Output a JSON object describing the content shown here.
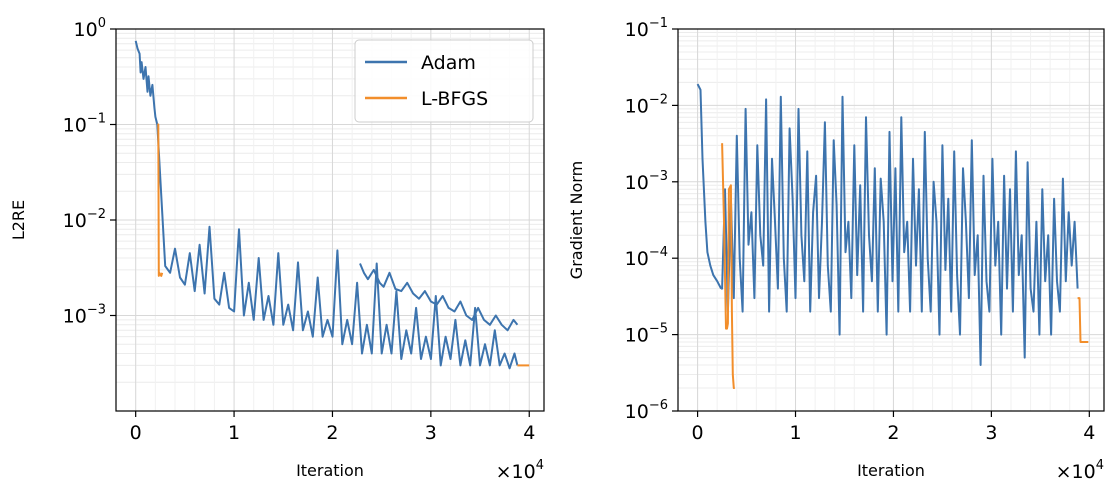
{
  "chart_data": [
    {
      "type": "line",
      "xlabel": "Iteration",
      "ylabel": "L2RE",
      "yscale": "log",
      "xlim": [
        -0.2,
        4.15
      ],
      "ylim": [
        0.0001,
        1.0
      ],
      "x_scale_factor": "×10",
      "x_scale_exponent": "4",
      "x_ticks": [
        0,
        1,
        2,
        3,
        4
      ],
      "x_tick_labels": [
        "0",
        "1",
        "2",
        "3",
        "4"
      ],
      "y_ticks": [
        {
          "value": 1.0,
          "base": "10",
          "exp": "0"
        },
        {
          "value": 0.1,
          "base": "10",
          "exp": "−1"
        },
        {
          "value": 0.01,
          "base": "10",
          "exp": "−2"
        },
        {
          "value": 0.001,
          "base": "10",
          "exp": "−3"
        }
      ],
      "grid": true,
      "legend": "top-right",
      "series": [
        {
          "name": "Adam",
          "color": "#3d74ae",
          "x": [
            0.0,
            0.02,
            0.04,
            0.05,
            0.06,
            0.08,
            0.1,
            0.12,
            0.13,
            0.15,
            0.17,
            0.19,
            0.2,
            0.22
          ],
          "y": [
            0.75,
            0.62,
            0.55,
            0.35,
            0.45,
            0.3,
            0.4,
            0.22,
            0.32,
            0.2,
            0.26,
            0.15,
            0.12,
            0.1
          ],
          "x_tail": [
            2.28,
            2.32,
            2.36,
            2.42,
            2.48,
            2.52,
            2.58,
            2.64,
            2.7,
            2.76,
            2.82,
            2.88,
            2.94,
            3.0,
            3.06,
            3.12,
            3.18,
            3.24,
            3.3,
            3.36,
            3.42,
            3.48,
            3.54,
            3.6,
            3.66,
            3.72,
            3.78,
            3.84,
            3.88
          ],
          "y_tail": [
            0.0035,
            0.0028,
            0.0024,
            0.003,
            0.0022,
            0.002,
            0.0028,
            0.0019,
            0.0018,
            0.0022,
            0.0017,
            0.0015,
            0.0018,
            0.0014,
            0.0013,
            0.0016,
            0.0012,
            0.0011,
            0.0014,
            0.001,
            0.0009,
            0.0012,
            0.0009,
            0.0008,
            0.001,
            0.0008,
            0.0007,
            0.0009,
            0.0008
          ],
          "x_noise": [
            0.3,
            0.35,
            0.4,
            0.45,
            0.5,
            0.55,
            0.6,
            0.65,
            0.7,
            0.75,
            0.8,
            0.85,
            0.9,
            0.95,
            1.0,
            1.05,
            1.1,
            1.15,
            1.2,
            1.25,
            1.3,
            1.35,
            1.4,
            1.45,
            1.5,
            1.55,
            1.6,
            1.65,
            1.7,
            1.75,
            1.8,
            1.85,
            1.9,
            1.95,
            2.0,
            2.05,
            2.1,
            2.15,
            2.2,
            2.25,
            2.3,
            2.35,
            2.4,
            2.45,
            2.5,
            2.55,
            2.6,
            2.65,
            2.7,
            2.75,
            2.8,
            2.85,
            2.9,
            2.95,
            3.0,
            3.05,
            3.1,
            3.15,
            3.2,
            3.25,
            3.3,
            3.35,
            3.4,
            3.45,
            3.5,
            3.55,
            3.6,
            3.65,
            3.7,
            3.75,
            3.8,
            3.85,
            3.88
          ],
          "y_noise": [
            0.0033,
            0.0028,
            0.005,
            0.0025,
            0.0021,
            0.0045,
            0.0018,
            0.0055,
            0.0017,
            0.0085,
            0.0015,
            0.0013,
            0.0028,
            0.0012,
            0.0011,
            0.008,
            0.001,
            0.0022,
            0.0009,
            0.004,
            0.0009,
            0.0016,
            0.0008,
            0.0045,
            0.0008,
            0.0013,
            0.0007,
            0.0036,
            0.0007,
            0.0011,
            0.0006,
            0.0025,
            0.0006,
            0.0009,
            0.0006,
            0.0048,
            0.0005,
            0.0009,
            0.0005,
            0.0022,
            0.0004,
            0.0008,
            0.0004,
            0.0035,
            0.0004,
            0.0008,
            0.0004,
            0.0018,
            0.00035,
            0.0007,
            0.0004,
            0.0012,
            0.00035,
            0.0006,
            0.00035,
            0.0016,
            0.0003,
            0.0006,
            0.00035,
            0.0009,
            0.0003,
            0.00055,
            0.0003,
            0.0012,
            0.0003,
            0.0005,
            0.0003,
            0.0007,
            0.0003,
            0.0004,
            0.00028,
            0.0004,
            0.0003
          ]
        },
        {
          "name": "L-BFGS",
          "color": "#f28e2b",
          "x": [
            0.22,
            0.23,
            0.235,
            0.24,
            0.26,
            0.27
          ],
          "y": [
            0.1,
            0.1,
            0.0026,
            0.0028,
            0.0026,
            0.0028
          ],
          "x_end": [
            3.88,
            3.92,
            3.96,
            4.0
          ],
          "y_end": [
            0.0003,
            0.0003,
            0.0003,
            0.0003
          ]
        }
      ]
    },
    {
      "type": "line",
      "xlabel": "Iteration",
      "ylabel": "Gradient Norm",
      "yscale": "log",
      "xlim": [
        -0.2,
        4.15
      ],
      "ylim": [
        1e-06,
        0.1
      ],
      "x_scale_factor": "×10",
      "x_scale_exponent": "4",
      "x_ticks": [
        0,
        1,
        2,
        3,
        4
      ],
      "x_tick_labels": [
        "0",
        "1",
        "2",
        "3",
        "4"
      ],
      "y_ticks": [
        {
          "value": 0.1,
          "base": "10",
          "exp": "−1"
        },
        {
          "value": 0.01,
          "base": "10",
          "exp": "−2"
        },
        {
          "value": 0.001,
          "base": "10",
          "exp": "−3"
        },
        {
          "value": 0.0001,
          "base": "10",
          "exp": "−4"
        },
        {
          "value": 1e-05,
          "base": "10",
          "exp": "−5"
        },
        {
          "value": 1e-06,
          "base": "10",
          "exp": "−6"
        }
      ],
      "grid": true,
      "series": [
        {
          "name": "Adam",
          "color": "#3d74ae",
          "x": [
            0.0,
            0.03,
            0.05,
            0.08,
            0.1,
            0.13,
            0.16,
            0.2,
            0.24
          ],
          "y": [
            0.019,
            0.016,
            0.002,
            0.0003,
            0.00012,
            8e-05,
            6e-05,
            5e-05,
            4e-05
          ],
          "x_noise": [
            0.25,
            0.28,
            0.31,
            0.34,
            0.37,
            0.4,
            0.43,
            0.46,
            0.49,
            0.52,
            0.55,
            0.58,
            0.61,
            0.64,
            0.67,
            0.7,
            0.73,
            0.76,
            0.79,
            0.82,
            0.85,
            0.88,
            0.91,
            0.94,
            0.97,
            1.0,
            1.03,
            1.06,
            1.09,
            1.12,
            1.15,
            1.18,
            1.21,
            1.24,
            1.27,
            1.3,
            1.33,
            1.36,
            1.39,
            1.42,
            1.45,
            1.48,
            1.51,
            1.54,
            1.57,
            1.6,
            1.63,
            1.66,
            1.69,
            1.72,
            1.75,
            1.78,
            1.81,
            1.84,
            1.87,
            1.9,
            1.93,
            1.96,
            1.99,
            2.02,
            2.05,
            2.08,
            2.11,
            2.14,
            2.17,
            2.2,
            2.23,
            2.26,
            2.29,
            2.32,
            2.35,
            2.38,
            2.41,
            2.44,
            2.47,
            2.5,
            2.53,
            2.56,
            2.59,
            2.62,
            2.65,
            2.68,
            2.71,
            2.74,
            2.77,
            2.8,
            2.83,
            2.86,
            2.89,
            2.92,
            2.95,
            2.98,
            3.01,
            3.04,
            3.07,
            3.1,
            3.13,
            3.16,
            3.19,
            3.22,
            3.25,
            3.28,
            3.31,
            3.34,
            3.37,
            3.4,
            3.43,
            3.46,
            3.49,
            3.52,
            3.55,
            3.58,
            3.61,
            3.64,
            3.67,
            3.7,
            3.73,
            3.76,
            3.79,
            3.82,
            3.85,
            3.88
          ],
          "y_noise": [
            4e-05,
            0.0008,
            2e-05,
            0.0006,
            3e-05,
            0.004,
            0.0001,
            2e-05,
            0.009,
            0.00015,
            0.0004,
            3e-05,
            0.003,
            0.0002,
            8e-05,
            0.012,
            2e-05,
            0.002,
            0.0003,
            4e-05,
            0.013,
            0.0001,
            2e-05,
            0.005,
            0.0006,
            3e-05,
            0.009,
            0.0002,
            5e-05,
            0.0025,
            2e-05,
            0.0004,
            0.0012,
            3e-05,
            0.0003,
            0.006,
            8e-05,
            2e-05,
            0.0035,
            0.0005,
            1e-05,
            0.013,
            0.00012,
            0.0003,
            3e-05,
            0.003,
            6e-05,
            0.0009,
            2e-05,
            0.007,
            0.0002,
            5e-05,
            0.0015,
            2e-05,
            0.0011,
            0.0003,
            1e-05,
            0.0045,
            5e-05,
            0.0015,
            2e-05,
            0.007,
            0.00012,
            0.0003,
            2e-05,
            0.002,
            8e-05,
            0.0008,
            2e-05,
            0.0045,
            0.0001,
            2e-05,
            0.001,
            0.0003,
            1e-05,
            0.003,
            7e-05,
            0.0006,
            2e-05,
            0.0025,
            6e-05,
            1e-05,
            0.0015,
            0.0003,
            3e-05,
            0.0035,
            6e-05,
            0.0002,
            4e-06,
            0.0012,
            5e-05,
            2e-05,
            0.002,
            8e-05,
            0.0003,
            1e-05,
            0.0012,
            4e-05,
            0.0008,
            2e-05,
            0.0025,
            6e-05,
            0.0002,
            5e-06,
            0.0018,
            4e-05,
            2e-05,
            0.0003,
            1e-05,
            0.0008,
            5e-05,
            0.0002,
            1e-05,
            0.0006,
            5e-05,
            2e-05,
            0.0011,
            5e-05,
            0.0004,
            8e-05,
            0.0003,
            4e-05
          ]
        },
        {
          "name": "L-BFGS",
          "color": "#f28e2b",
          "x": [
            0.25,
            0.27,
            0.29,
            0.3,
            0.31,
            0.32,
            0.34,
            0.35,
            0.36,
            0.37,
            0.38
          ],
          "y": [
            0.0032,
            0.0003,
            1.2e-05,
            1.2e-05,
            1.4e-05,
            0.0008,
            0.0009,
            2e-05,
            3e-06,
            2e-06,
            2e-06
          ],
          "x_end": [
            3.88,
            3.9,
            3.91,
            3.93,
            3.96,
            3.99
          ],
          "y_end": [
            3e-05,
            3e-05,
            8e-06,
            8e-06,
            8e-06,
            8e-06
          ]
        }
      ]
    }
  ]
}
